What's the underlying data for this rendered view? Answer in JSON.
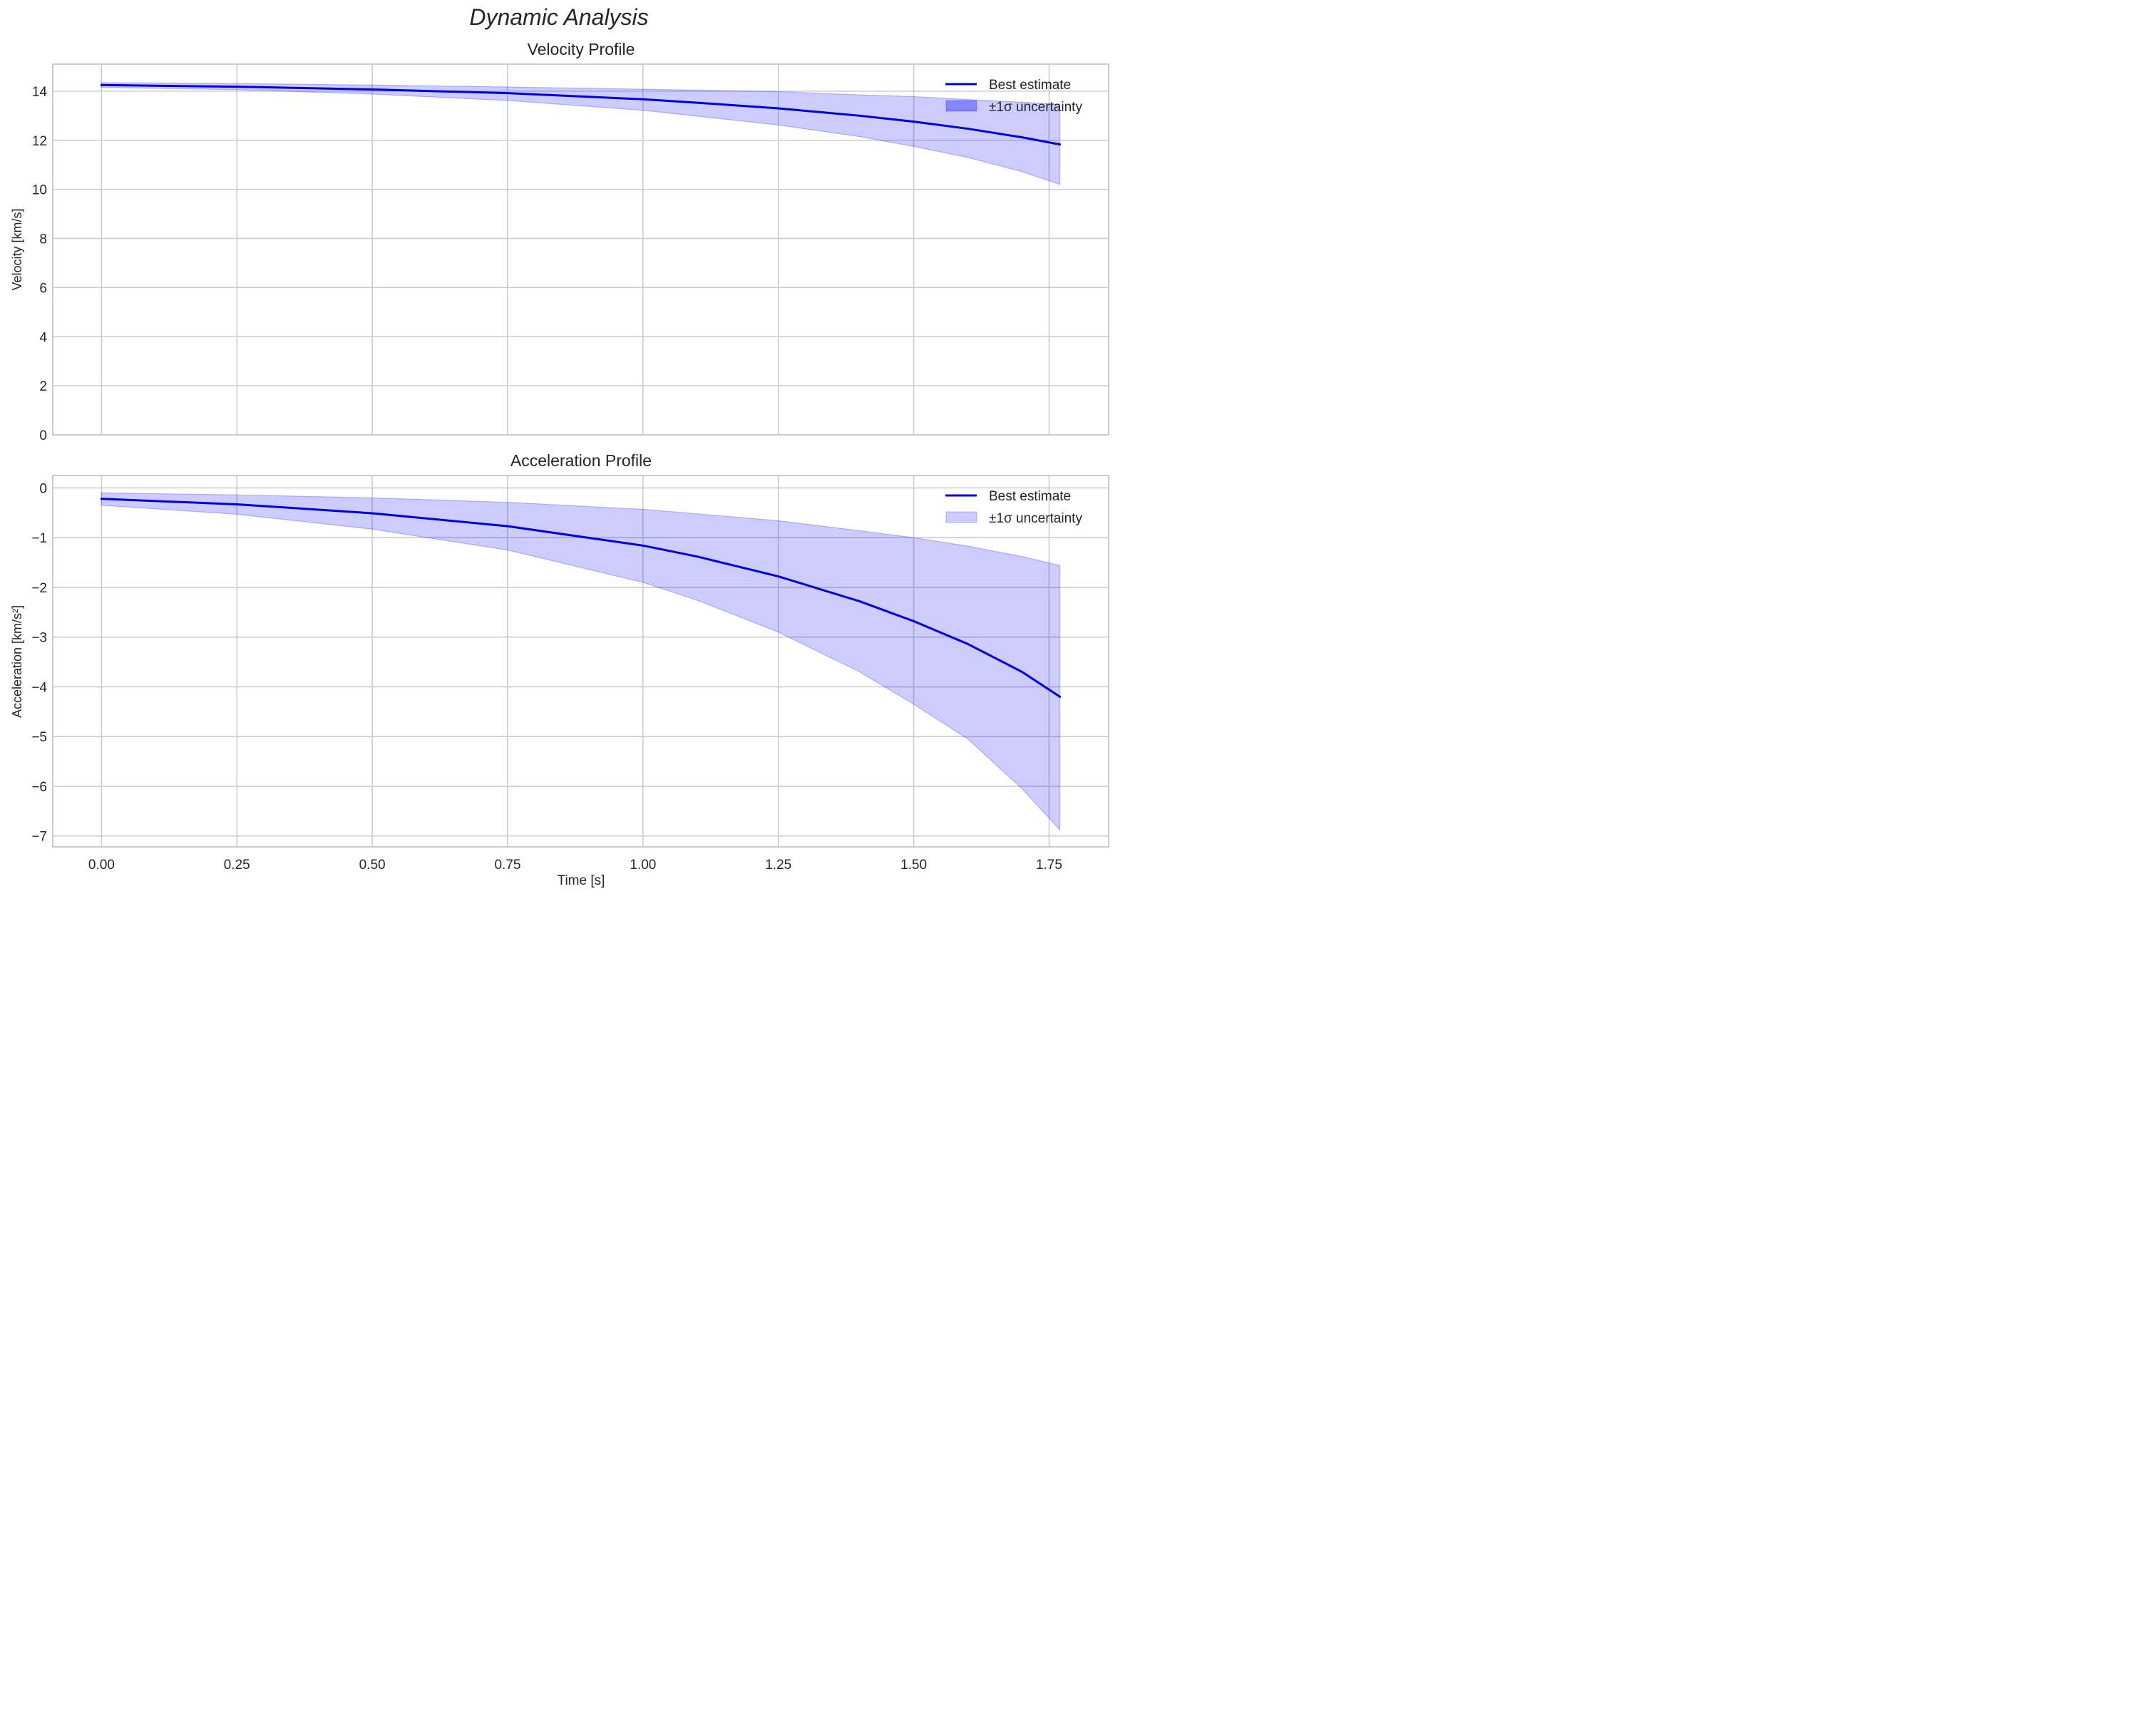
{
  "figure": {
    "suptitle": "Dynamic Analysis"
  },
  "chart_data": [
    {
      "type": "line",
      "title": "Velocity Profile",
      "xlabel": "",
      "ylabel": "Velocity [km/s]",
      "xlim": [
        -0.09,
        1.86
      ],
      "ylim": [
        0,
        15.1
      ],
      "xticks": [
        0.0,
        0.25,
        0.5,
        0.75,
        1.0,
        1.25,
        1.5,
        1.75
      ],
      "xtick_labels_visible": false,
      "yticks": [
        0,
        2,
        4,
        6,
        8,
        10,
        12,
        14
      ],
      "ytick_labels": [
        "0",
        "2",
        "4",
        "6",
        "8",
        "10",
        "12",
        "14"
      ],
      "grid": true,
      "legend": {
        "position": "upper right",
        "entries": [
          "Best estimate",
          "±1σ uncertainty"
        ]
      },
      "x": [
        0.0,
        0.25,
        0.5,
        0.75,
        1.0,
        1.1,
        1.25,
        1.4,
        1.5,
        1.6,
        1.7,
        1.77
      ],
      "series": [
        {
          "name": "Best estimate",
          "kind": "line",
          "color": "#0000dd",
          "values": [
            14.25,
            14.18,
            14.07,
            13.92,
            13.67,
            13.53,
            13.3,
            13.0,
            12.76,
            12.47,
            12.12,
            11.83
          ]
        },
        {
          "name": "±1σ uncertainty",
          "kind": "band",
          "color": "#0000ff",
          "alpha": 0.2,
          "lower": [
            14.15,
            14.06,
            13.88,
            13.62,
            13.22,
            12.98,
            12.62,
            12.15,
            11.75,
            11.3,
            10.72,
            10.2
          ],
          "upper": [
            14.35,
            14.31,
            14.25,
            14.17,
            14.08,
            14.04,
            13.98,
            13.85,
            13.78,
            13.66,
            13.55,
            13.46
          ]
        }
      ]
    },
    {
      "type": "line",
      "title": "Acceleration Profile",
      "xlabel": "Time [s]",
      "ylabel": "Acceleration [km/s²]",
      "xlim": [
        -0.09,
        1.86
      ],
      "ylim": [
        -7.22,
        0.25
      ],
      "xticks": [
        0.0,
        0.25,
        0.5,
        0.75,
        1.0,
        1.25,
        1.5,
        1.75
      ],
      "xtick_labels": [
        "0.00",
        "0.25",
        "0.50",
        "0.75",
        "1.00",
        "1.25",
        "1.50",
        "1.75"
      ],
      "yticks": [
        0,
        -1,
        -2,
        -3,
        -4,
        -5,
        -6,
        -7
      ],
      "ytick_labels": [
        "0",
        "−1",
        "−2",
        "−3",
        "−4",
        "−5",
        "−6",
        "−7"
      ],
      "grid": true,
      "legend": {
        "position": "upper right",
        "entries": [
          "Best estimate",
          "±1σ uncertainty"
        ]
      },
      "x": [
        0.0,
        0.25,
        0.5,
        0.75,
        1.0,
        1.1,
        1.25,
        1.4,
        1.5,
        1.6,
        1.7,
        1.77
      ],
      "series": [
        {
          "name": "Best estimate",
          "kind": "line",
          "color": "#0000dd",
          "values": [
            -0.22,
            -0.33,
            -0.51,
            -0.77,
            -1.16,
            -1.38,
            -1.78,
            -2.28,
            -2.68,
            -3.14,
            -3.7,
            -4.2
          ]
        },
        {
          "name": "±1σ uncertainty",
          "kind": "band",
          "color": "#0000ff",
          "alpha": 0.2,
          "lower": [
            -0.35,
            -0.53,
            -0.83,
            -1.25,
            -1.9,
            -2.26,
            -2.9,
            -3.7,
            -4.35,
            -5.05,
            -6.05,
            -6.88
          ],
          "upper": [
            -0.1,
            -0.14,
            -0.2,
            -0.29,
            -0.43,
            -0.52,
            -0.66,
            -0.86,
            -1.0,
            -1.17,
            -1.38,
            -1.56
          ]
        }
      ]
    }
  ]
}
